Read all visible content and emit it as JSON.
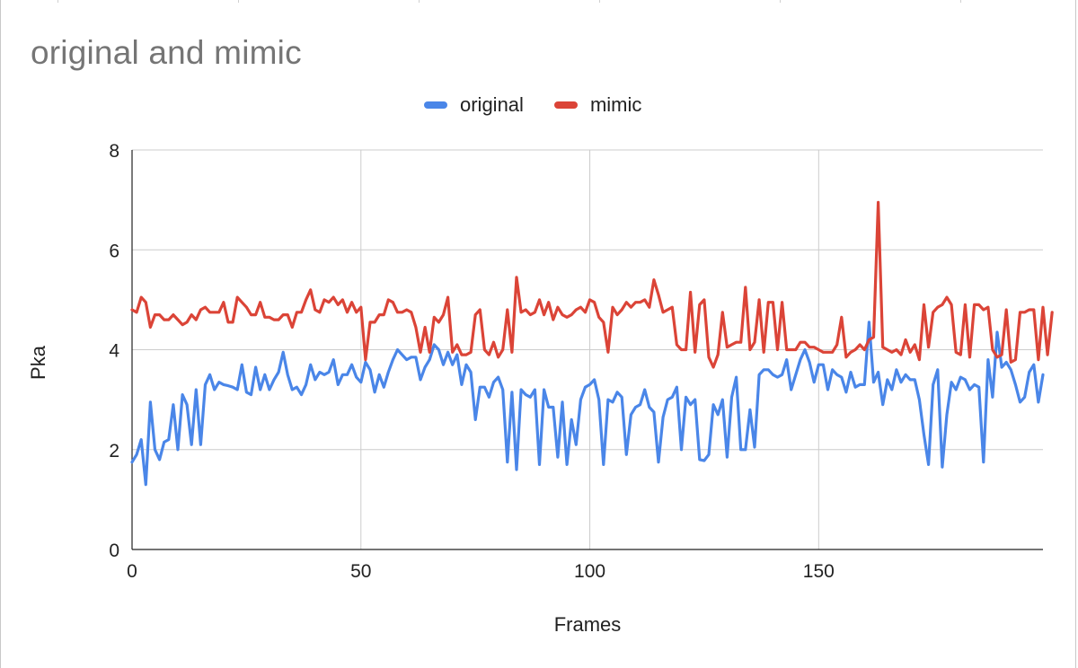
{
  "chart_data": {
    "type": "line",
    "title": "original and mimic",
    "xlabel": "Frames",
    "ylabel": "Pka",
    "xlim": [
      0,
      199
    ],
    "ylim": [
      0,
      8
    ],
    "xticks": [
      0,
      50,
      100,
      150
    ],
    "yticks": [
      0,
      2,
      4,
      6,
      8
    ],
    "grid": true,
    "legend_position": "top",
    "series": [
      {
        "name": "original",
        "color": "#4a86e8",
        "values": [
          1.75,
          1.9,
          2.2,
          1.3,
          2.95,
          2.0,
          1.8,
          2.15,
          2.2,
          2.9,
          2.0,
          3.1,
          2.9,
          2.1,
          3.2,
          2.1,
          3.3,
          3.5,
          3.2,
          3.35,
          3.3,
          3.28,
          3.25,
          3.2,
          3.7,
          3.15,
          3.1,
          3.65,
          3.2,
          3.5,
          3.2,
          3.4,
          3.55,
          3.95,
          3.5,
          3.2,
          3.25,
          3.1,
          3.3,
          3.7,
          3.4,
          3.55,
          3.5,
          3.55,
          3.8,
          3.3,
          3.5,
          3.5,
          3.7,
          3.45,
          3.35,
          3.75,
          3.6,
          3.15,
          3.5,
          3.25,
          3.55,
          3.8,
          4.0,
          3.9,
          3.8,
          3.85,
          3.85,
          3.4,
          3.65,
          3.8,
          4.1,
          4.0,
          3.7,
          3.95,
          3.7,
          3.9,
          3.3,
          3.7,
          3.55,
          2.6,
          3.25,
          3.25,
          3.05,
          3.35,
          3.45,
          3.2,
          1.75,
          3.15,
          1.6,
          3.2,
          3.1,
          3.05,
          3.2,
          1.7,
          3.2,
          2.85,
          2.85,
          1.85,
          2.95,
          1.7,
          2.6,
          2.1,
          3.0,
          3.25,
          3.3,
          3.4,
          3.0,
          1.7,
          3.0,
          2.95,
          3.15,
          3.05,
          1.9,
          2.7,
          2.85,
          2.9,
          3.2,
          2.85,
          2.75,
          1.75,
          2.65,
          3.0,
          3.05,
          3.25,
          2.0,
          3.05,
          2.9,
          3.0,
          1.8,
          1.78,
          1.9,
          2.9,
          2.7,
          3.0,
          1.85,
          3.05,
          3.45,
          2.0,
          2.0,
          2.8,
          2.05,
          3.5,
          3.6,
          3.6,
          3.5,
          3.45,
          3.5,
          3.8,
          3.2,
          3.5,
          3.8,
          4.0,
          3.75,
          3.35,
          3.7,
          3.7,
          3.2,
          3.6,
          3.5,
          3.45,
          3.15,
          3.55,
          3.25,
          3.3,
          3.3,
          4.55,
          3.35,
          3.55,
          2.9,
          3.4,
          3.2,
          3.6,
          3.35,
          3.5,
          3.4,
          3.4,
          3.0,
          2.3,
          1.7,
          3.3,
          3.6,
          1.65,
          2.7,
          3.35,
          3.2,
          3.45,
          3.4,
          3.2,
          3.3,
          3.25,
          1.75,
          3.8,
          3.05,
          4.35,
          3.65,
          3.75,
          3.6,
          3.3,
          2.95,
          3.05,
          3.55,
          3.7,
          2.95,
          3.5
        ]
      },
      {
        "name": "mimic",
        "color": "#db4437",
        "values": [
          4.8,
          4.75,
          5.05,
          4.95,
          4.45,
          4.7,
          4.7,
          4.6,
          4.6,
          4.7,
          4.6,
          4.5,
          4.55,
          4.7,
          4.6,
          4.8,
          4.85,
          4.75,
          4.75,
          4.75,
          4.95,
          4.55,
          4.55,
          5.05,
          4.95,
          4.85,
          4.7,
          4.7,
          4.95,
          4.65,
          4.65,
          4.6,
          4.6,
          4.7,
          4.7,
          4.45,
          4.75,
          4.75,
          5.0,
          5.2,
          4.8,
          4.75,
          5.0,
          4.95,
          5.05,
          4.9,
          5.0,
          4.75,
          4.95,
          4.75,
          4.85,
          3.8,
          4.55,
          4.55,
          4.7,
          4.7,
          5.0,
          4.95,
          4.75,
          4.75,
          4.8,
          4.75,
          4.45,
          3.95,
          4.45,
          3.95,
          4.65,
          4.55,
          4.7,
          5.05,
          3.95,
          4.1,
          3.9,
          3.9,
          3.95,
          4.7,
          4.8,
          4.0,
          3.9,
          4.15,
          3.85,
          4.0,
          4.8,
          3.95,
          5.45,
          4.75,
          4.8,
          4.7,
          4.75,
          5.0,
          4.7,
          4.95,
          4.6,
          4.85,
          4.7,
          4.65,
          4.7,
          4.8,
          4.85,
          4.75,
          5.0,
          4.95,
          4.65,
          4.55,
          3.95,
          4.85,
          4.7,
          4.8,
          4.95,
          4.85,
          4.95,
          4.95,
          5.0,
          4.85,
          5.4,
          5.1,
          4.75,
          4.8,
          4.85,
          4.1,
          4.0,
          4.0,
          5.15,
          3.95,
          4.9,
          5.0,
          3.85,
          3.65,
          3.9,
          4.75,
          4.05,
          4.1,
          4.15,
          4.15,
          5.25,
          4.0,
          4.15,
          5.0,
          3.95,
          4.95,
          4.95,
          4.0,
          4.95,
          4.0,
          4.0,
          4.0,
          4.15,
          4.15,
          4.05,
          4.05,
          4.0,
          3.95,
          3.95,
          3.95,
          4.1,
          4.65,
          3.85,
          3.95,
          4.0,
          4.1,
          4.0,
          4.2,
          4.25,
          6.95,
          4.05,
          4.0,
          3.95,
          4.0,
          3.9,
          4.2,
          3.95,
          4.1,
          3.8,
          4.9,
          4.05,
          4.75,
          4.85,
          4.9,
          5.05,
          4.9,
          3.95,
          3.9,
          4.9,
          3.85,
          4.9,
          4.9,
          4.8,
          4.85,
          4.0,
          3.85,
          3.9,
          4.8,
          3.75,
          3.8,
          4.75,
          4.75,
          4.8,
          4.8,
          3.8,
          4.85,
          3.9,
          4.75
        ]
      }
    ]
  }
}
